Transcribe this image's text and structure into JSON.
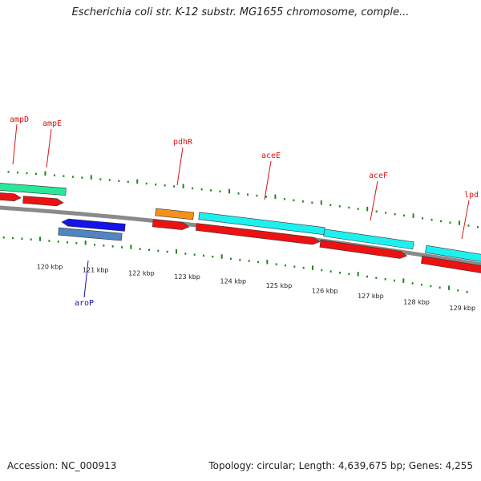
{
  "title": "Escherichia coli str. K-12 substr. MG1655 chromosome, comple...",
  "footer": {
    "accession": "Accession: NC_000913",
    "summary": "Topology: circular; Length: 4,639,675 bp; Genes: 4,255"
  },
  "colors": {
    "backbone": "#8a8a8a",
    "cds_red": "#ee1111",
    "gene_cyan": "#1ef0f0",
    "gene_green": "#29e89a",
    "gene_orange": "#f5901a",
    "gene_blue": "#1414e8",
    "gene_steel": "#4f86bf",
    "tick_green": "#1a8a1a",
    "label_red": "#dd1111",
    "label_blue": "#1111aa"
  },
  "axis_labels": [
    "120 kbp",
    "121 kbp",
    "122 kbp",
    "123 kbp",
    "124 kbp",
    "125 kbp",
    "126 kbp",
    "127 kbp",
    "128 kbp",
    "129 kbp"
  ],
  "genes": [
    {
      "name": "ampD",
      "strand": "+",
      "color": "label_red"
    },
    {
      "name": "ampE",
      "strand": "+",
      "color": "label_red"
    },
    {
      "name": "pdhR",
      "strand": "+",
      "color": "label_red"
    },
    {
      "name": "aceE",
      "strand": "+",
      "color": "label_red"
    },
    {
      "name": "aceF",
      "strand": "+",
      "color": "label_red"
    },
    {
      "name": "lpd",
      "strand": "+",
      "color": "label_red"
    },
    {
      "name": "aroP",
      "strand": "-",
      "color": "label_blue"
    }
  ]
}
